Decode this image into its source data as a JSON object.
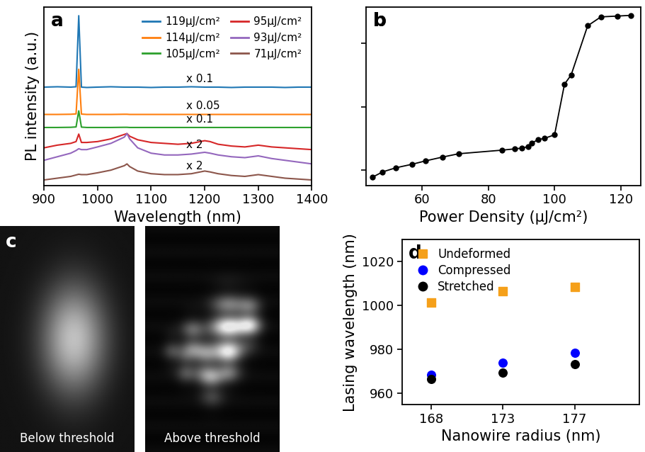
{
  "chart_data": [
    {
      "type": "line",
      "panel_label": "a",
      "x_label": "Wavelength (nm)",
      "y_label": "PL intensity (a.u.)",
      "xlim": [
        900,
        1400
      ],
      "xticks": [
        900,
        1000,
        1100,
        1200,
        1300,
        1400
      ],
      "ylim": [
        0,
        10
      ],
      "tick_labels": "x",
      "legend": "upper right",
      "x": [
        900,
        925,
        950,
        960,
        965,
        970,
        980,
        1000,
        1025,
        1050,
        1055,
        1060,
        1075,
        1100,
        1125,
        1150,
        1175,
        1200,
        1210,
        1225,
        1250,
        1275,
        1300,
        1325,
        1350,
        1375,
        1400
      ],
      "series": [
        {
          "name": "119μJ/cm²",
          "color": "#1f77b4",
          "annotation": "x 0.1",
          "values": [
            5.5,
            5.52,
            5.5,
            5.52,
            9.5,
            5.5,
            5.48,
            5.5,
            5.52,
            5.5,
            5.5,
            5.5,
            5.5,
            5.48,
            5.5,
            5.5,
            5.52,
            5.5,
            5.5,
            5.5,
            5.48,
            5.5,
            5.5,
            5.5,
            5.48,
            5.5,
            5.5
          ]
        },
        {
          "name": "114μJ/cm²",
          "color": "#ff7f0e",
          "annotation": "x 0.05",
          "values": [
            3.97,
            3.97,
            3.98,
            4.0,
            6.5,
            3.99,
            3.97,
            3.97,
            3.97,
            3.98,
            3.98,
            3.97,
            3.97,
            3.97,
            3.97,
            3.97,
            3.97,
            3.97,
            3.97,
            3.97,
            3.97,
            3.97,
            3.97,
            3.97,
            3.97,
            3.97,
            3.97
          ]
        },
        {
          "name": "105μJ/cm²",
          "color": "#2ca02c",
          "annotation": "x 0.1",
          "values": [
            3.24,
            3.24,
            3.25,
            3.27,
            4.17,
            3.26,
            3.24,
            3.24,
            3.24,
            3.25,
            3.25,
            3.24,
            3.24,
            3.24,
            3.24,
            3.24,
            3.24,
            3.24,
            3.24,
            3.24,
            3.24,
            3.24,
            3.24,
            3.24,
            3.24,
            3.24,
            3.24
          ]
        },
        {
          "name": "95μJ/cm²",
          "color": "#d62728",
          "values": [
            2.1,
            2.25,
            2.35,
            2.45,
            2.87,
            2.4,
            2.4,
            2.45,
            2.6,
            2.85,
            2.9,
            2.75,
            2.55,
            2.4,
            2.35,
            2.3,
            2.35,
            2.5,
            2.45,
            2.3,
            2.2,
            2.15,
            2.25,
            2.15,
            2.1,
            2.05,
            2.0
          ]
        },
        {
          "name": "93μJ/cm²",
          "color": "#9467bd",
          "annotation": "x 2",
          "values": [
            1.4,
            1.6,
            1.8,
            1.95,
            2.05,
            2.0,
            2.0,
            2.15,
            2.35,
            2.7,
            2.9,
            2.6,
            2.1,
            1.8,
            1.7,
            1.7,
            1.75,
            1.85,
            1.8,
            1.7,
            1.6,
            1.55,
            1.65,
            1.5,
            1.4,
            1.3,
            1.2
          ]
        },
        {
          "name": "71μJ/cm²",
          "color": "#8c564b",
          "annotation": "x 2",
          "values": [
            0.3,
            0.4,
            0.5,
            0.58,
            0.62,
            0.6,
            0.6,
            0.7,
            0.85,
            1.1,
            1.2,
            1.05,
            0.8,
            0.65,
            0.6,
            0.6,
            0.65,
            0.8,
            0.75,
            0.65,
            0.55,
            0.5,
            0.6,
            0.5,
            0.4,
            0.35,
            0.3
          ]
        }
      ]
    },
    {
      "type": "line",
      "panel_label": "b",
      "x_label": "Power Density (μJ/cm²)",
      "log": "y",
      "xlim": [
        43,
        126
      ],
      "xticks": [
        60,
        80,
        100,
        120
      ],
      "ylim": [
        0.57,
        380
      ],
      "yticks": [
        1,
        10,
        100
      ],
      "tick_labels": "x",
      "color": "#000000",
      "marker": "circle",
      "line_style": "solid",
      "x": [
        45,
        48,
        52,
        57,
        61,
        66,
        71,
        84,
        88,
        90,
        92,
        93,
        95,
        97,
        100,
        103,
        105,
        110,
        114,
        119,
        123
      ],
      "values": [
        0.77,
        0.93,
        1.08,
        1.23,
        1.39,
        1.59,
        1.8,
        2.05,
        2.15,
        2.21,
        2.33,
        2.64,
        3.0,
        3.16,
        3.59,
        22.7,
        31.6,
        190,
        263,
        271,
        278
      ]
    },
    {
      "type": "image",
      "panel_label": "c",
      "captions": [
        "Below threshold",
        "Above threshold"
      ]
    },
    {
      "type": "scatter",
      "panel_label": "d",
      "x_label": "Nanowire radius (nm)",
      "y_label": "Lasing wavelength (nm)",
      "categories": [
        "168",
        "173",
        "177"
      ],
      "ylim": [
        955,
        1030
      ],
      "yticks": [
        960,
        980,
        1000,
        1020
      ],
      "legend": "upper left",
      "series": [
        {
          "name": "Undeformed",
          "color": "#f5a01a",
          "marker": "square",
          "values": [
            1001.5,
            1006.5,
            1008.5
          ]
        },
        {
          "name": "Compressed",
          "color": "#0000ff",
          "marker": "circle",
          "values": [
            968.5,
            974.0,
            978.5
          ]
        },
        {
          "name": "Stretched",
          "color": "#000000",
          "marker": "circle",
          "values": [
            966.5,
            969.5,
            973.5
          ]
        }
      ]
    }
  ]
}
